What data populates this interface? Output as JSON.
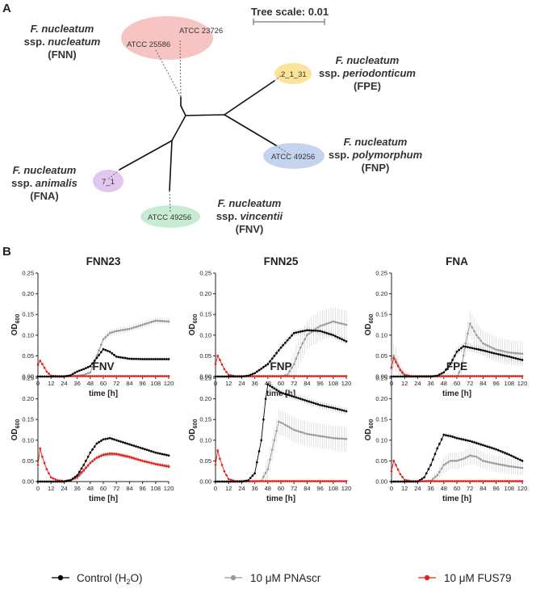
{
  "panel_a": {
    "label": "A",
    "tree_scale_label": "Tree scale: 0.01",
    "clades": [
      {
        "id": "fnn",
        "name_l1": "F. nucleatum",
        "name_l2": "ssp. ",
        "name_l2_italic": "nucleatum",
        "abbr": "(FNN)",
        "color": "#f7c4c4",
        "strains": [
          "ATCC 23726",
          "ATCC 25586"
        ]
      },
      {
        "id": "fpe",
        "name_l1": "F. nucleatum",
        "name_l2": "ssp. ",
        "name_l2_italic": "periodonticum",
        "abbr": "(FPE)",
        "color": "#fbe39a",
        "strains": [
          "2_1_31"
        ]
      },
      {
        "id": "fnp",
        "name_l1": "F. nucleatum",
        "name_l2": "ssp. ",
        "name_l2_italic": "polymorphum",
        "abbr": "(FNP)",
        "color": "#c5d4ee",
        "strains": [
          "ATCC 49256"
        ]
      },
      {
        "id": "fna",
        "name_l1": "F. nucleatum",
        "name_l2": "ssp. ",
        "name_l2_italic": "animalis",
        "abbr": "(FNA)",
        "color": "#e2c6ee",
        "strains": [
          "7_1"
        ]
      },
      {
        "id": "fnv",
        "name_l1": "F. nucleatum",
        "name_l2": "ssp. ",
        "name_l2_italic": "vincentii",
        "abbr": "(FNV)",
        "color": "#c8ecd3",
        "strains": [
          "ATCC 49256"
        ]
      }
    ]
  },
  "panel_b": {
    "label": "B"
  },
  "legend": {
    "items": [
      {
        "pre": "Control (H",
        "sub": "2",
        "post": "O)",
        "color": "#000000"
      },
      {
        "pre": "10 μM PNAscr",
        "sub": "",
        "post": "",
        "color": "#999999"
      },
      {
        "pre": "10 μM FUS79",
        "sub": "",
        "post": "",
        "color": "#e8201a"
      }
    ]
  },
  "chart_data": [
    {
      "type": "line",
      "title": "FNN23",
      "xlabel": "time [h]",
      "ylabel_main": "OD",
      "ylabel_sub": "600",
      "xlim": [
        0,
        120
      ],
      "ylim": [
        0,
        0.25
      ],
      "xticks": [
        0,
        12,
        24,
        36,
        48,
        60,
        72,
        84,
        96,
        108,
        120
      ],
      "yticks": [
        0,
        0.05,
        0.1,
        0.15,
        0.2,
        0.25
      ],
      "ytick_labels": [
        "0.00",
        "0.05",
        "0.10",
        "0.15",
        "0.20",
        "0.25"
      ],
      "series": [
        {
          "name": "Control (H2O)",
          "x": [
            0,
            12,
            24,
            30,
            36,
            42,
            48,
            54,
            60,
            66,
            72,
            84,
            96,
            108,
            120
          ],
          "values": [
            0,
            0,
            0,
            0.003,
            0.012,
            0.018,
            0.025,
            0.045,
            0.066,
            0.06,
            0.048,
            0.043,
            0.042,
            0.042,
            0.042
          ],
          "err": 0.004
        },
        {
          "name": "10 µM PNAscr",
          "x": [
            0,
            12,
            24,
            36,
            42,
            48,
            54,
            60,
            66,
            72,
            84,
            96,
            108,
            120
          ],
          "values": [
            0,
            0,
            0,
            0.002,
            0.004,
            0.01,
            0.05,
            0.09,
            0.105,
            0.11,
            0.115,
            0.125,
            0.135,
            0.133
          ],
          "err": 0.008
        },
        {
          "name": "10 µM FUS79",
          "x": [
            0,
            2,
            4,
            8,
            12,
            18,
            24,
            120
          ],
          "values": [
            0.028,
            0.038,
            0.03,
            0.012,
            0.002,
            0.001,
            0.001,
            0.001
          ],
          "err": 0.003
        }
      ]
    },
    {
      "type": "line",
      "title": "FNN25",
      "xlabel": "time [h]",
      "ylabel_main": "OD",
      "ylabel_sub": "600",
      "xlim": [
        0,
        120
      ],
      "ylim": [
        0,
        0.25
      ],
      "xticks": [
        0,
        12,
        24,
        36,
        48,
        60,
        72,
        84,
        96,
        108,
        120
      ],
      "yticks": [
        0,
        0.05,
        0.1,
        0.15,
        0.2,
        0.25
      ],
      "ytick_labels": [
        "0.00",
        "0.05",
        "0.10",
        "0.15",
        "0.20",
        "0.25"
      ],
      "series": [
        {
          "name": "Control (H2O)",
          "x": [
            0,
            12,
            24,
            30,
            36,
            48,
            60,
            72,
            84,
            96,
            108,
            120
          ],
          "values": [
            0,
            0,
            0,
            0.002,
            0.008,
            0.03,
            0.07,
            0.105,
            0.112,
            0.11,
            0.1,
            0.085
          ],
          "err": 0.008
        },
        {
          "name": "10 µM PNAscr",
          "x": [
            0,
            24,
            48,
            60,
            66,
            72,
            78,
            84,
            90,
            96,
            108,
            120
          ],
          "values": [
            0,
            0,
            0,
            0,
            0.004,
            0.03,
            0.07,
            0.1,
            0.112,
            0.122,
            0.133,
            0.125
          ],
          "err": 0.035
        },
        {
          "name": "10 µM FUS79",
          "x": [
            0,
            2,
            4,
            8,
            12,
            18,
            24,
            120
          ],
          "values": [
            0.03,
            0.05,
            0.04,
            0.018,
            0.004,
            0.001,
            0.001,
            0.001
          ],
          "err": 0.003
        }
      ]
    },
    {
      "type": "line",
      "title": "FNA",
      "xlabel": "time [h]",
      "ylabel_main": "OD",
      "ylabel_sub": "600",
      "xlim": [
        0,
        120
      ],
      "ylim": [
        0,
        0.25
      ],
      "xticks": [
        0,
        12,
        24,
        36,
        48,
        60,
        72,
        84,
        96,
        108,
        120
      ],
      "yticks": [
        0,
        0.05,
        0.1,
        0.15,
        0.2,
        0.25
      ],
      "ytick_labels": [
        "0.00",
        "0.05",
        "0.10",
        "0.15",
        "0.20",
        "0.25"
      ],
      "series": [
        {
          "name": "Control (H2O)",
          "x": [
            0,
            24,
            36,
            42,
            48,
            54,
            60,
            66,
            72,
            84,
            96,
            108,
            120
          ],
          "values": [
            0,
            0,
            0,
            0.002,
            0.01,
            0.03,
            0.06,
            0.073,
            0.07,
            0.063,
            0.055,
            0.048,
            0.04
          ],
          "err": 0.01
        },
        {
          "name": "10 µM PNAscr",
          "x": [
            0,
            2,
            4,
            6,
            8,
            12,
            18,
            24,
            60,
            64,
            68,
            72,
            78,
            84,
            96,
            108,
            120
          ],
          "values": [
            0.02,
            0.05,
            0.04,
            0.028,
            0.018,
            0.005,
            0.001,
            0,
            0,
            0.02,
            0.08,
            0.128,
            0.1,
            0.08,
            0.065,
            0.058,
            0.055
          ],
          "err": 0.03
        },
        {
          "name": "10 µM FUS79",
          "x": [
            0,
            2,
            4,
            8,
            12,
            18,
            24,
            120
          ],
          "values": [
            0.022,
            0.045,
            0.035,
            0.015,
            0.003,
            0.001,
            0.001,
            0.001
          ],
          "err": 0.004
        }
      ]
    },
    {
      "type": "line",
      "title": "FNV",
      "xlabel": "time [h]",
      "ylabel_main": "OD",
      "ylabel_sub": "600",
      "xlim": [
        0,
        120
      ],
      "ylim": [
        0,
        0.25
      ],
      "xticks": [
        0,
        12,
        24,
        36,
        48,
        60,
        72,
        84,
        96,
        108,
        120
      ],
      "yticks": [
        0,
        0.05,
        0.1,
        0.15,
        0.2,
        0.25
      ],
      "ytick_labels": [
        "0.00",
        "0.05",
        "0.10",
        "0.15",
        "0.20",
        "0.25"
      ],
      "series": [
        {
          "name": "Control (H2O)",
          "x": [
            0,
            12,
            24,
            30,
            36,
            42,
            48,
            54,
            60,
            66,
            72,
            84,
            96,
            108,
            120
          ],
          "values": [
            0,
            0,
            0,
            0.003,
            0.015,
            0.04,
            0.07,
            0.092,
            0.102,
            0.105,
            0.1,
            0.09,
            0.08,
            0.07,
            0.063
          ],
          "err": 0.004
        },
        {
          "name": "10 µM PNAscr",
          "x": [
            0,
            12,
            24,
            36,
            42,
            48,
            54,
            60,
            66,
            72,
            84,
            96,
            108,
            120
          ],
          "values": [
            0,
            0,
            0,
            0.008,
            0.025,
            0.045,
            0.057,
            0.063,
            0.065,
            0.065,
            0.058,
            0.05,
            0.043,
            0.038
          ],
          "err": 0.005
        },
        {
          "name": "10 µM FUS79",
          "x": [
            0,
            2,
            4,
            8,
            12,
            18,
            24,
            30,
            36,
            42,
            48,
            54,
            60,
            66,
            72,
            84,
            96,
            108,
            120
          ],
          "values": [
            0.04,
            0.08,
            0.06,
            0.03,
            0.01,
            0.003,
            0.001,
            0.004,
            0.012,
            0.028,
            0.045,
            0.058,
            0.065,
            0.068,
            0.067,
            0.06,
            0.05,
            0.042,
            0.036
          ],
          "err": 0.005
        }
      ]
    },
    {
      "type": "line",
      "title": "FNP",
      "xlabel": "time [h]",
      "ylabel_main": "OD",
      "ylabel_sub": "600",
      "xlim": [
        0,
        120
      ],
      "ylim": [
        0,
        0.25
      ],
      "xticks": [
        0,
        12,
        24,
        36,
        48,
        60,
        72,
        84,
        96,
        108,
        120
      ],
      "yticks": [
        0,
        0.05,
        0.1,
        0.15,
        0.2,
        0.25
      ],
      "ytick_labels": [
        "0.00",
        "0.05",
        "0.10",
        "0.15",
        "0.20",
        "0.25"
      ],
      "series": [
        {
          "name": "Control (H2O)",
          "x": [
            0,
            24,
            30,
            36,
            42,
            46,
            48,
            54,
            60,
            72,
            84,
            96,
            108,
            120
          ],
          "values": [
            0,
            0,
            0.003,
            0.02,
            0.1,
            0.2,
            0.235,
            0.225,
            0.215,
            0.205,
            0.195,
            0.185,
            0.178,
            0.17
          ],
          "err": 0.008
        },
        {
          "name": "10 µM PNAscr",
          "x": [
            0,
            36,
            42,
            48,
            54,
            58,
            62,
            72,
            84,
            96,
            108,
            120
          ],
          "values": [
            0,
            0,
            0.002,
            0.03,
            0.1,
            0.145,
            0.14,
            0.125,
            0.115,
            0.11,
            0.105,
            0.103
          ],
          "err": 0.03
        },
        {
          "name": "10 µM FUS79",
          "x": [
            0,
            2,
            4,
            8,
            12,
            18,
            24,
            120
          ],
          "values": [
            0.04,
            0.075,
            0.055,
            0.025,
            0.006,
            0.001,
            0.001,
            0.001
          ],
          "err": 0.004
        }
      ]
    },
    {
      "type": "line",
      "title": "FPE",
      "xlabel": "time [h]",
      "ylabel_main": "OD",
      "ylabel_sub": "600",
      "xlim": [
        0,
        120
      ],
      "ylim": [
        0,
        0.25
      ],
      "xticks": [
        0,
        12,
        24,
        36,
        48,
        60,
        72,
        84,
        96,
        108,
        120
      ],
      "yticks": [
        0,
        0.05,
        0.1,
        0.15,
        0.2,
        0.25
      ],
      "ytick_labels": [
        "0.00",
        "0.05",
        "0.10",
        "0.15",
        "0.20",
        "0.25"
      ],
      "series": [
        {
          "name": "Control (H2O)",
          "x": [
            0,
            12,
            24,
            30,
            36,
            42,
            48,
            54,
            60,
            72,
            84,
            96,
            108,
            120
          ],
          "values": [
            0,
            0,
            0,
            0.01,
            0.04,
            0.08,
            0.113,
            0.11,
            0.105,
            0.098,
            0.088,
            0.078,
            0.065,
            0.05
          ],
          "err": 0.005
        },
        {
          "name": "10 µM PNAscr",
          "x": [
            0,
            24,
            36,
            42,
            48,
            54,
            60,
            66,
            72,
            78,
            84,
            96,
            108,
            120
          ],
          "values": [
            0,
            0,
            0.002,
            0.015,
            0.04,
            0.05,
            0.05,
            0.055,
            0.063,
            0.06,
            0.05,
            0.043,
            0.037,
            0.033
          ],
          "err": 0.02
        },
        {
          "name": "10 µM FUS79",
          "x": [
            0,
            2,
            4,
            8,
            12,
            18,
            24,
            120
          ],
          "values": [
            0.025,
            0.05,
            0.04,
            0.018,
            0.004,
            0.001,
            0.001,
            0.001
          ],
          "err": 0.004
        }
      ]
    }
  ]
}
